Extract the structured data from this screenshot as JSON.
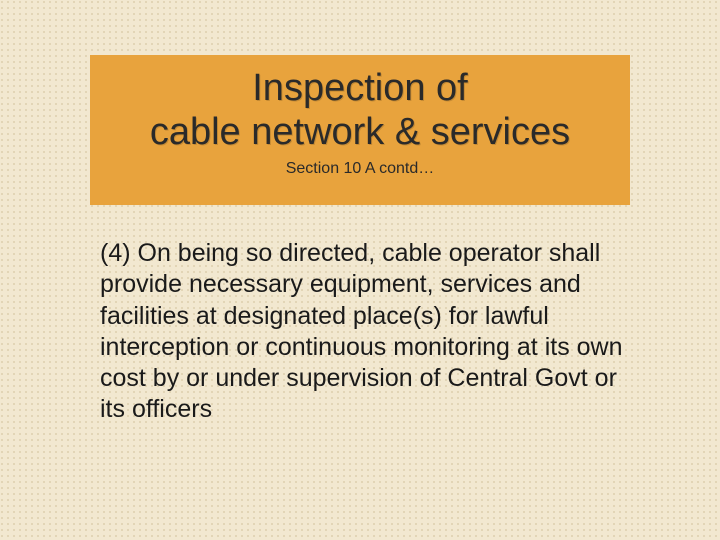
{
  "slide": {
    "background_color": "#f2e8d0",
    "dot_color": "rgba(180,160,110,0.35)",
    "title_box": {
      "background_color": "#e8a33d",
      "title_line1": "Inspection of",
      "title_line2": "cable network & services",
      "title_fontsize": 38,
      "title_color": "#2a2a2a",
      "subtitle": "Section 10 A contd…",
      "subtitle_fontsize": 16,
      "subtitle_color": "#2a2a2a"
    },
    "body": {
      "text": "(4) On being so directed, cable operator shall provide necessary equipment, services and facilities at designated place(s) for lawful interception or continuous monitoring at its own cost by or under supervision of Central Govt or its officers",
      "fontsize": 25,
      "color": "#1a1a1a"
    }
  }
}
